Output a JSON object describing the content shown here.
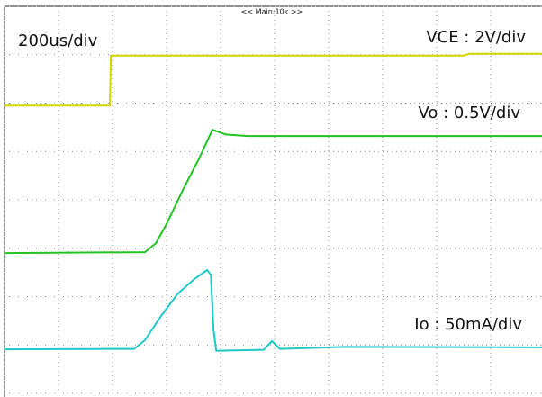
{
  "chart_data": {
    "type": "line",
    "annotations": [
      "200us/div",
      "VCE : 2V/div",
      "Vo : 0.5V/div",
      "Io : 50mA/div",
      "<< Main:10k >>"
    ],
    "xlim": [
      0,
      10
    ],
    "ylim": [
      0,
      8
    ],
    "xticks": [
      0,
      1,
      2,
      3,
      4,
      5,
      6,
      7,
      8,
      9,
      10
    ],
    "yticks": [
      0,
      1,
      2,
      3,
      4,
      5,
      6,
      7,
      8
    ],
    "grid": true,
    "series": [
      {
        "color": "#d4d400",
        "x": [
          0,
          1.95,
          1.97,
          8.5,
          8.6,
          10
        ],
        "values": [
          5.95,
          5.95,
          6.98,
          6.98,
          7.02,
          7.02
        ]
      },
      {
        "color": "#22c322",
        "x": [
          0,
          2.6,
          2.8,
          3.0,
          3.3,
          3.6,
          3.85,
          4.1,
          4.5,
          10
        ],
        "values": [
          2.9,
          2.92,
          3.1,
          3.5,
          4.2,
          4.85,
          5.45,
          5.35,
          5.32,
          5.32
        ]
      },
      {
        "color": "#1ec8c8",
        "x": [
          0,
          2.4,
          2.6,
          2.9,
          3.2,
          3.5,
          3.75,
          3.82,
          3.87,
          3.92,
          4.8,
          4.95,
          5.1,
          6.3,
          10
        ],
        "values": [
          0.91,
          0.92,
          1.1,
          1.6,
          2.05,
          2.35,
          2.55,
          2.45,
          1.3,
          0.88,
          0.9,
          1.08,
          0.92,
          0.96,
          0.95
        ]
      }
    ]
  }
}
